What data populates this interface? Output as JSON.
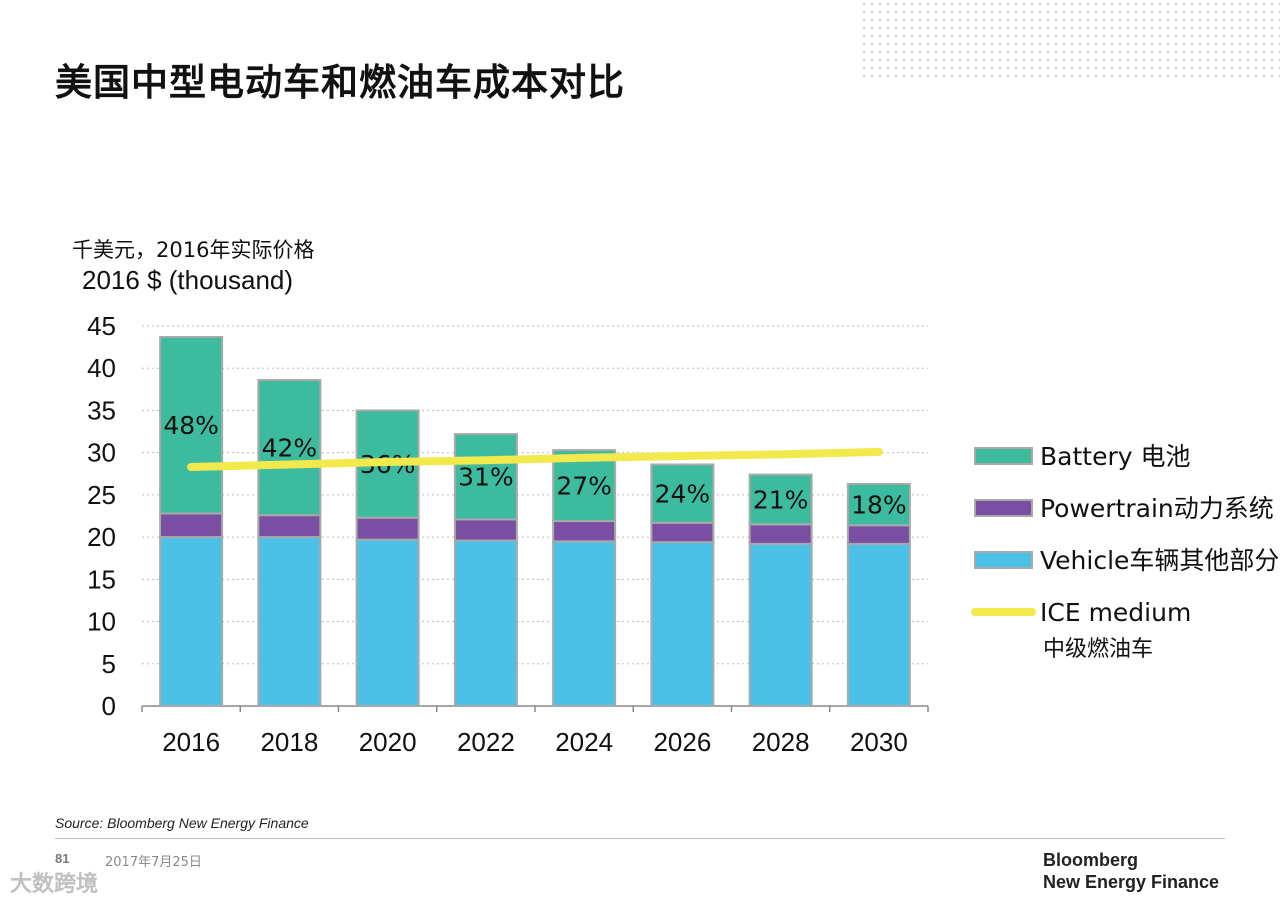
{
  "title": "美国中型电动车和燃油车成本对比",
  "unit_cn": "千美元，2016年实际价格",
  "unit_en": "2016 $ (thousand)",
  "source": "Source: Bloomberg New Energy Finance",
  "footer": {
    "page": "81",
    "date": "2017年7月25日",
    "brand_line1": "Bloomberg",
    "brand_line2": "New Energy Finance"
  },
  "watermark": "大数跨境",
  "chart_data": {
    "type": "bar",
    "stacked": true,
    "categories": [
      "2016",
      "2018",
      "2020",
      "2022",
      "2024",
      "2026",
      "2028",
      "2030"
    ],
    "ylim": [
      0,
      45
    ],
    "yticks": [
      0,
      5,
      10,
      15,
      20,
      25,
      30,
      35,
      40,
      45
    ],
    "grid": true,
    "legend_position": "right",
    "series": [
      {
        "name": "Vehicle车辆其他部分",
        "color": "#4cc1e7",
        "values": [
          20.0,
          20.0,
          19.7,
          19.6,
          19.5,
          19.4,
          19.2,
          19.2
        ]
      },
      {
        "name": "Powertrain动力系统",
        "color": "#7a4ea3",
        "values": [
          2.8,
          2.6,
          2.6,
          2.5,
          2.4,
          2.3,
          2.3,
          2.2
        ]
      },
      {
        "name": "Battery 电池",
        "color": "#3dbb9e",
        "values": [
          20.9,
          16.0,
          12.7,
          10.1,
          8.4,
          6.9,
          5.9,
          4.9
        ],
        "labels": [
          "48%",
          "42%",
          "36%",
          "31%",
          "27%",
          "24%",
          "21%",
          "18%"
        ]
      },
      {
        "name": "ICE medium",
        "type": "line",
        "color": "#f2e94d",
        "values": [
          28.3,
          28.6,
          28.9,
          29.1,
          29.4,
          29.6,
          29.8,
          30.1
        ]
      }
    ],
    "legend": [
      {
        "label": "Battery 电池",
        "color": "#3dbb9e",
        "kind": "box"
      },
      {
        "label": "Powertrain动力系统",
        "color": "#7a4ea3",
        "kind": "box"
      },
      {
        "label": "Vehicle车辆其他部分",
        "color": "#4cc1e7",
        "kind": "box"
      },
      {
        "label": "ICE medium",
        "sublabel": "中级燃油车",
        "color": "#f2e94d",
        "kind": "line"
      }
    ]
  }
}
